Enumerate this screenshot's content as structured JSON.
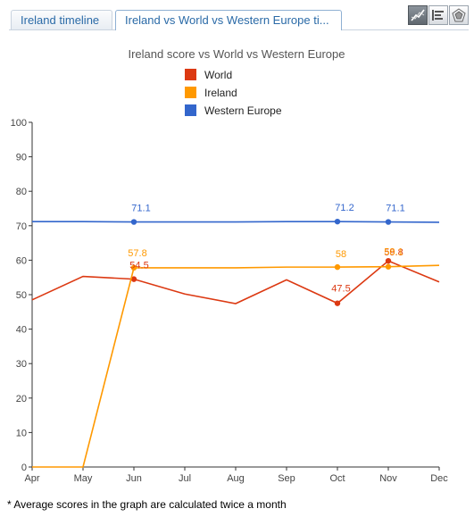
{
  "tabs": [
    {
      "label": "Ireland timeline",
      "active": false
    },
    {
      "label": "Ireland vs World vs Western Europe ti...",
      "active": true
    }
  ],
  "tools": [
    "line-chart-icon",
    "bar-list-icon",
    "radar-chart-icon"
  ],
  "footnote": "* Average scores in the graph are calculated twice a month",
  "chart_data": {
    "type": "line",
    "title": "Ireland score vs World vs Western Europe",
    "xlabel": "",
    "ylabel": "",
    "categories": [
      "Apr",
      "May",
      "Jun",
      "Jul",
      "Aug",
      "Sep",
      "Oct",
      "Nov",
      "Dec"
    ],
    "ylim": [
      0,
      100
    ],
    "yticks": [
      0,
      10,
      20,
      30,
      40,
      50,
      60,
      70,
      80,
      90,
      100
    ],
    "grid": false,
    "legend_position": "top",
    "series": [
      {
        "name": "World",
        "color": "#dc3912",
        "x": [
          0,
          1,
          2,
          3,
          4,
          5,
          6,
          7,
          8
        ],
        "values": [
          48.5,
          55.3,
          54.5,
          50.2,
          47.4,
          54.3,
          47.5,
          59.8,
          53.7
        ],
        "marked_points": [
          2,
          6,
          7
        ],
        "labels": {
          "2": "54.5",
          "6": "47.5",
          "7": "59.8"
        }
      },
      {
        "name": "Ireland",
        "color": "#ff9900",
        "x": [
          0,
          1,
          2,
          3,
          4,
          5,
          6,
          7,
          8
        ],
        "values": [
          0,
          0,
          57.8,
          57.8,
          57.8,
          58.0,
          58.0,
          58.1,
          58.5
        ],
        "marked_points": [
          2,
          6,
          7
        ],
        "labels": {
          "2": "57.8",
          "6": "58",
          "7": "58.1"
        }
      },
      {
        "name": "Western Europe",
        "color": "#3366cc",
        "x": [
          0,
          1,
          2,
          3,
          4,
          5,
          6,
          7,
          8
        ],
        "values": [
          71.2,
          71.2,
          71.1,
          71.1,
          71.1,
          71.2,
          71.2,
          71.1,
          71.0
        ],
        "marked_points": [
          2,
          6,
          7
        ],
        "labels": {
          "2": "71.1",
          "6": "71.2",
          "7": "71.1"
        }
      }
    ]
  }
}
